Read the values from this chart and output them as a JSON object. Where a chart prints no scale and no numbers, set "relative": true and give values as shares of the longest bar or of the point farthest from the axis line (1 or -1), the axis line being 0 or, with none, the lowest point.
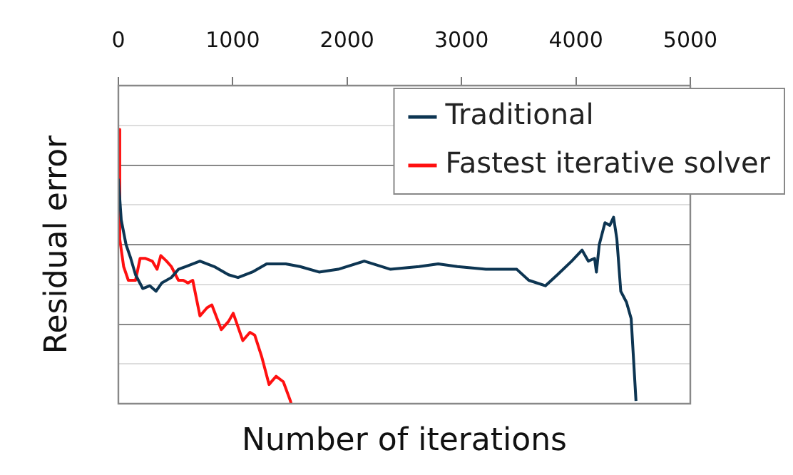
{
  "chart_data": {
    "type": "line",
    "xlabel": "Number of iterations",
    "ylabel": "Residual error",
    "relative": true,
    "xlim": [
      0,
      5000
    ],
    "xticks": [
      0,
      1000,
      2000,
      3000,
      4000,
      5000
    ],
    "grid": "y",
    "legend": "top right",
    "marker": "none",
    "line_style": "solid",
    "series": [
      {
        "name": "Traditional",
        "color": "#0d3552",
        "x": [
          0,
          25,
          67,
          108,
          150,
          213,
          275,
          329,
          379,
          463,
          525,
          588,
          713,
          838,
          963,
          1046,
          1171,
          1296,
          1463,
          1588,
          1754,
          1921,
          2150,
          2379,
          2629,
          2796,
          2963,
          3213,
          3483,
          3588,
          3733,
          3838,
          3963,
          4054,
          4108,
          4163,
          4179,
          4204,
          4254,
          4296,
          4329,
          4358,
          4392,
          4442,
          4483,
          4504,
          4525
        ],
        "values": [
          0.82,
          0.67,
          0.58,
          0.53,
          0.47,
          0.42,
          0.43,
          0.41,
          0.44,
          0.46,
          0.49,
          0.5,
          0.52,
          0.5,
          0.47,
          0.46,
          0.48,
          0.51,
          0.51,
          0.5,
          0.48,
          0.49,
          0.52,
          0.49,
          0.5,
          0.51,
          0.5,
          0.49,
          0.49,
          0.45,
          0.43,
          0.47,
          0.52,
          0.56,
          0.52,
          0.53,
          0.48,
          0.58,
          0.66,
          0.65,
          0.68,
          0.6,
          0.41,
          0.37,
          0.31,
          0.16,
          0.01
        ]
      },
      {
        "name": "Fastest iterative solver",
        "color": "#ff1010",
        "x": [
          0,
          12,
          46,
          87,
          150,
          190,
          233,
          296,
          338,
          371,
          421,
          463,
          525,
          567,
          608,
          650,
          713,
          775,
          817,
          900,
          963,
          1004,
          1088,
          1150,
          1192,
          1254,
          1317,
          1379,
          1442,
          1504,
          1510
        ],
        "values": [
          1.0,
          0.6,
          0.5,
          0.45,
          0.45,
          0.53,
          0.53,
          0.52,
          0.49,
          0.54,
          0.52,
          0.5,
          0.45,
          0.45,
          0.44,
          0.45,
          0.32,
          0.35,
          0.36,
          0.27,
          0.3,
          0.33,
          0.23,
          0.26,
          0.25,
          0.17,
          0.07,
          0.1,
          0.08,
          0.01,
          0
        ]
      }
    ]
  }
}
